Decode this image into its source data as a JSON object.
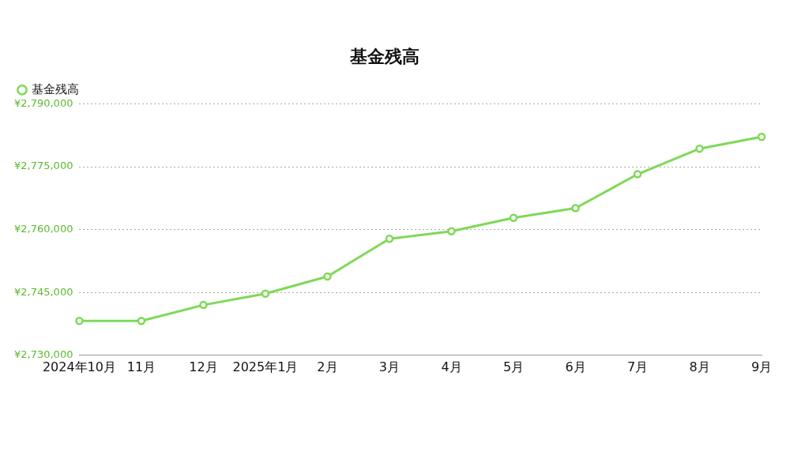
{
  "chart_data": {
    "type": "line",
    "title": "基金残高",
    "categories": [
      "2024年10月",
      "11月",
      "12月",
      "2025年1月",
      "2月",
      "3月",
      "4月",
      "5月",
      "6月",
      "7月",
      "8月",
      "9月"
    ],
    "series": [
      {
        "name": "基金残高",
        "color": "#7ed957",
        "values": [
          2738200,
          2738200,
          2742000,
          2744700,
          2748800,
          2757800,
          2759600,
          2762800,
          2765100,
          2773200,
          2779300,
          2782100
        ]
      }
    ],
    "ylim": [
      2730000,
      2790000
    ],
    "yticks": [
      {
        "value": 2730000,
        "label": "¥2,730,000"
      },
      {
        "value": 2745000,
        "label": "¥2,745,000"
      },
      {
        "value": 2760000,
        "label": "¥2,760,000"
      },
      {
        "value": 2775000,
        "label": "¥2,775,000"
      },
      {
        "value": 2790000,
        "label": "¥2,790,000"
      }
    ],
    "grid": "y",
    "legend": "top left",
    "marker": "circle",
    "line_style": "solid"
  }
}
